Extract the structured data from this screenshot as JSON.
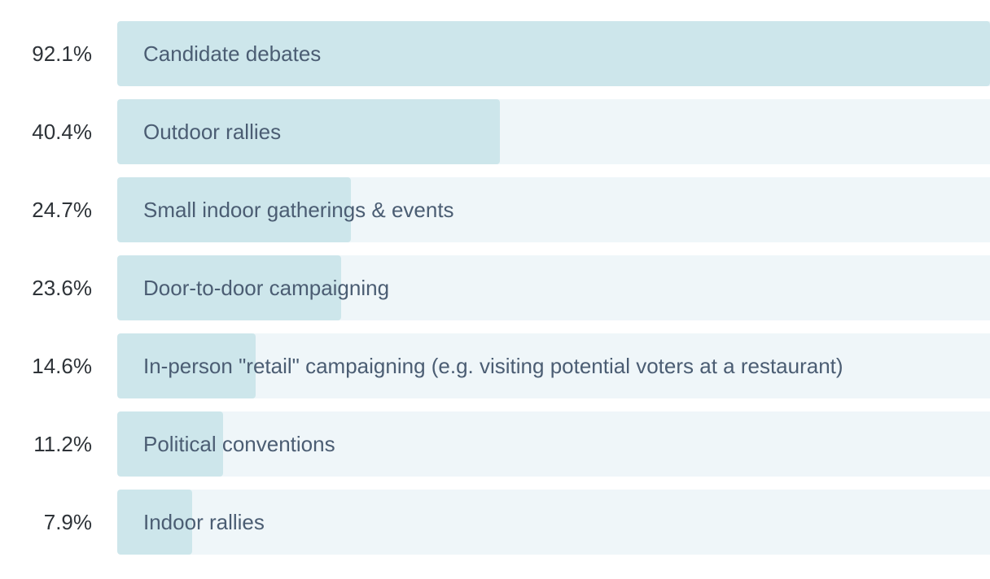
{
  "chart_data": {
    "type": "bar",
    "orientation": "horizontal",
    "max_value": 92.1,
    "categories": [
      "Candidate debates",
      "Outdoor rallies",
      "Small indoor gatherings & events",
      "Door-to-door campaigning",
      "In-person \"retail\" campaigning (e.g. visiting potential voters at a restaurant)",
      "Political conventions",
      "Indoor rallies"
    ],
    "values": [
      92.1,
      40.4,
      24.7,
      23.6,
      14.6,
      11.2,
      7.9
    ],
    "value_labels": [
      "92.1%",
      "40.4%",
      "24.7%",
      "23.6%",
      "14.6%",
      "11.2%",
      "7.9%"
    ],
    "colors": {
      "fill": "#cde6eb",
      "track": "#eff6f9",
      "label": "#4b5d73",
      "value_text": "#2e3338"
    }
  }
}
